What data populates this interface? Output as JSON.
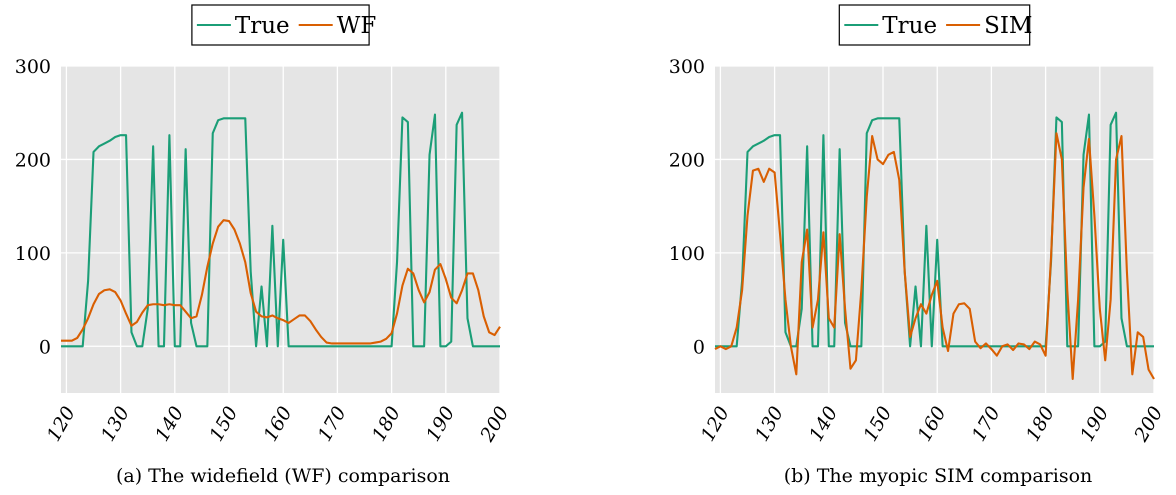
{
  "chart_data": [
    {
      "type": "line",
      "caption": "(a) The widefield (WF) comparison",
      "legend": "top-center",
      "grid": true,
      "xlim": [
        119,
        200
      ],
      "ylim": [
        -50,
        300
      ],
      "xticks": [
        120,
        130,
        140,
        150,
        160,
        170,
        180,
        190,
        200
      ],
      "yticks": [
        0,
        100,
        200,
        300
      ],
      "series": [
        {
          "name": "True",
          "color": "#1b9e77",
          "x": [
            119,
            120,
            121,
            122,
            123,
            124,
            125,
            126,
            127,
            128,
            129,
            130,
            131,
            132,
            133,
            134,
            135,
            136,
            137,
            138,
            139,
            140,
            141,
            142,
            143,
            144,
            145,
            146,
            147,
            148,
            149,
            150,
            151,
            152,
            153,
            154,
            155,
            156,
            157,
            158,
            159,
            160,
            161,
            162,
            163,
            164,
            165,
            166,
            167,
            168,
            169,
            170,
            171,
            172,
            173,
            174,
            175,
            176,
            177,
            178,
            179,
            180,
            181,
            182,
            183,
            184,
            185,
            186,
            187,
            188,
            189,
            190,
            191,
            192,
            193,
            194,
            195,
            196,
            197,
            198,
            199,
            200
          ],
          "y": [
            0,
            0,
            0,
            0,
            0,
            70,
            208,
            214,
            217,
            220,
            224,
            226,
            226,
            15,
            0,
            0,
            40,
            214,
            0,
            0,
            226,
            0,
            0,
            211,
            25,
            0,
            0,
            0,
            228,
            242,
            244,
            244,
            244,
            244,
            244,
            80,
            0,
            64,
            0,
            129,
            0,
            114,
            0,
            0,
            0,
            0,
            0,
            0,
            0,
            0,
            0,
            0,
            0,
            0,
            0,
            0,
            0,
            0,
            0,
            0,
            0,
            0,
            90,
            245,
            240,
            0,
            0,
            0,
            205,
            248,
            0,
            0,
            5,
            237,
            250,
            30,
            0,
            0,
            0,
            0,
            0,
            0
          ]
        },
        {
          "name": "WF",
          "color": "#d95f02",
          "x": [
            119,
            120,
            121,
            122,
            123,
            124,
            125,
            126,
            127,
            128,
            129,
            130,
            131,
            132,
            133,
            134,
            135,
            136,
            137,
            138,
            139,
            140,
            141,
            142,
            143,
            144,
            145,
            146,
            147,
            148,
            149,
            150,
            151,
            152,
            153,
            154,
            155,
            156,
            157,
            158,
            159,
            160,
            161,
            162,
            163,
            164,
            165,
            166,
            167,
            168,
            169,
            170,
            171,
            172,
            173,
            174,
            175,
            176,
            177,
            178,
            179,
            180,
            181,
            182,
            183,
            184,
            185,
            186,
            187,
            188,
            189,
            190,
            191,
            192,
            193,
            194,
            195,
            196,
            197,
            198,
            199,
            200
          ],
          "y": [
            6,
            6,
            6,
            9,
            18,
            30,
            45,
            56,
            60,
            61,
            58,
            49,
            35,
            22,
            26,
            36,
            44,
            45,
            45,
            44,
            45,
            44,
            44,
            37,
            30,
            32,
            55,
            85,
            110,
            128,
            135,
            134,
            125,
            110,
            90,
            57,
            37,
            32,
            31,
            33,
            30,
            28,
            25,
            29,
            33,
            33,
            27,
            18,
            10,
            4,
            3,
            3,
            3,
            3,
            3,
            3,
            3,
            3,
            4,
            5,
            8,
            14,
            35,
            65,
            83,
            78,
            60,
            47,
            58,
            82,
            88,
            72,
            52,
            46,
            60,
            78,
            78,
            60,
            32,
            15,
            12,
            21
          ]
        }
      ]
    },
    {
      "type": "line",
      "caption": "(b) The myopic SIM comparison",
      "legend": "top-center",
      "grid": true,
      "xlim": [
        119,
        200
      ],
      "ylim": [
        -50,
        300
      ],
      "xticks": [
        120,
        130,
        140,
        150,
        160,
        170,
        180,
        190,
        200
      ],
      "yticks": [
        0,
        100,
        200,
        300
      ],
      "series": [
        {
          "name": "True",
          "color": "#1b9e77",
          "x": [
            119,
            120,
            121,
            122,
            123,
            124,
            125,
            126,
            127,
            128,
            129,
            130,
            131,
            132,
            133,
            134,
            135,
            136,
            137,
            138,
            139,
            140,
            141,
            142,
            143,
            144,
            145,
            146,
            147,
            148,
            149,
            150,
            151,
            152,
            153,
            154,
            155,
            156,
            157,
            158,
            159,
            160,
            161,
            162,
            163,
            164,
            165,
            166,
            167,
            168,
            169,
            170,
            171,
            172,
            173,
            174,
            175,
            176,
            177,
            178,
            179,
            180,
            181,
            182,
            183,
            184,
            185,
            186,
            187,
            188,
            189,
            190,
            191,
            192,
            193,
            194,
            195,
            196,
            197,
            198,
            199,
            200
          ],
          "y": [
            0,
            0,
            0,
            0,
            0,
            70,
            208,
            214,
            217,
            220,
            224,
            226,
            226,
            15,
            0,
            0,
            40,
            214,
            0,
            0,
            226,
            0,
            0,
            211,
            25,
            0,
            0,
            0,
            228,
            242,
            244,
            244,
            244,
            244,
            244,
            80,
            0,
            64,
            0,
            129,
            0,
            114,
            0,
            0,
            0,
            0,
            0,
            0,
            0,
            0,
            0,
            0,
            0,
            0,
            0,
            0,
            0,
            0,
            0,
            0,
            0,
            0,
            90,
            245,
            240,
            0,
            0,
            0,
            205,
            248,
            0,
            0,
            5,
            237,
            250,
            30,
            0,
            0,
            0,
            0,
            0,
            0
          ]
        },
        {
          "name": "SIM",
          "color": "#d95f02",
          "x": [
            119,
            120,
            121,
            122,
            123,
            124,
            125,
            126,
            127,
            128,
            129,
            130,
            131,
            132,
            133,
            134,
            135,
            136,
            137,
            138,
            139,
            140,
            141,
            142,
            143,
            144,
            145,
            146,
            147,
            148,
            149,
            150,
            151,
            152,
            153,
            154,
            155,
            156,
            157,
            158,
            159,
            160,
            161,
            162,
            163,
            164,
            165,
            166,
            167,
            168,
            169,
            170,
            171,
            172,
            173,
            174,
            175,
            176,
            177,
            178,
            179,
            180,
            181,
            182,
            183,
            184,
            185,
            186,
            187,
            188,
            189,
            190,
            191,
            192,
            193,
            194,
            195,
            196,
            197,
            198,
            199,
            200
          ],
          "y": [
            -3,
            0,
            -3,
            0,
            20,
            60,
            140,
            188,
            190,
            176,
            190,
            186,
            120,
            50,
            0,
            -30,
            90,
            125,
            20,
            50,
            122,
            30,
            20,
            120,
            40,
            -24,
            -15,
            60,
            160,
            225,
            200,
            195,
            205,
            208,
            178,
            80,
            10,
            30,
            45,
            35,
            55,
            70,
            20,
            -5,
            35,
            45,
            46,
            40,
            5,
            -2,
            3,
            -3,
            -10,
            0,
            2,
            -4,
            3,
            2,
            -3,
            5,
            2,
            -10,
            95,
            228,
            200,
            60,
            -35,
            50,
            170,
            222,
            140,
            40,
            -15,
            50,
            200,
            225,
            80,
            -30,
            15,
            10,
            -25,
            -35
          ]
        }
      ]
    }
  ]
}
